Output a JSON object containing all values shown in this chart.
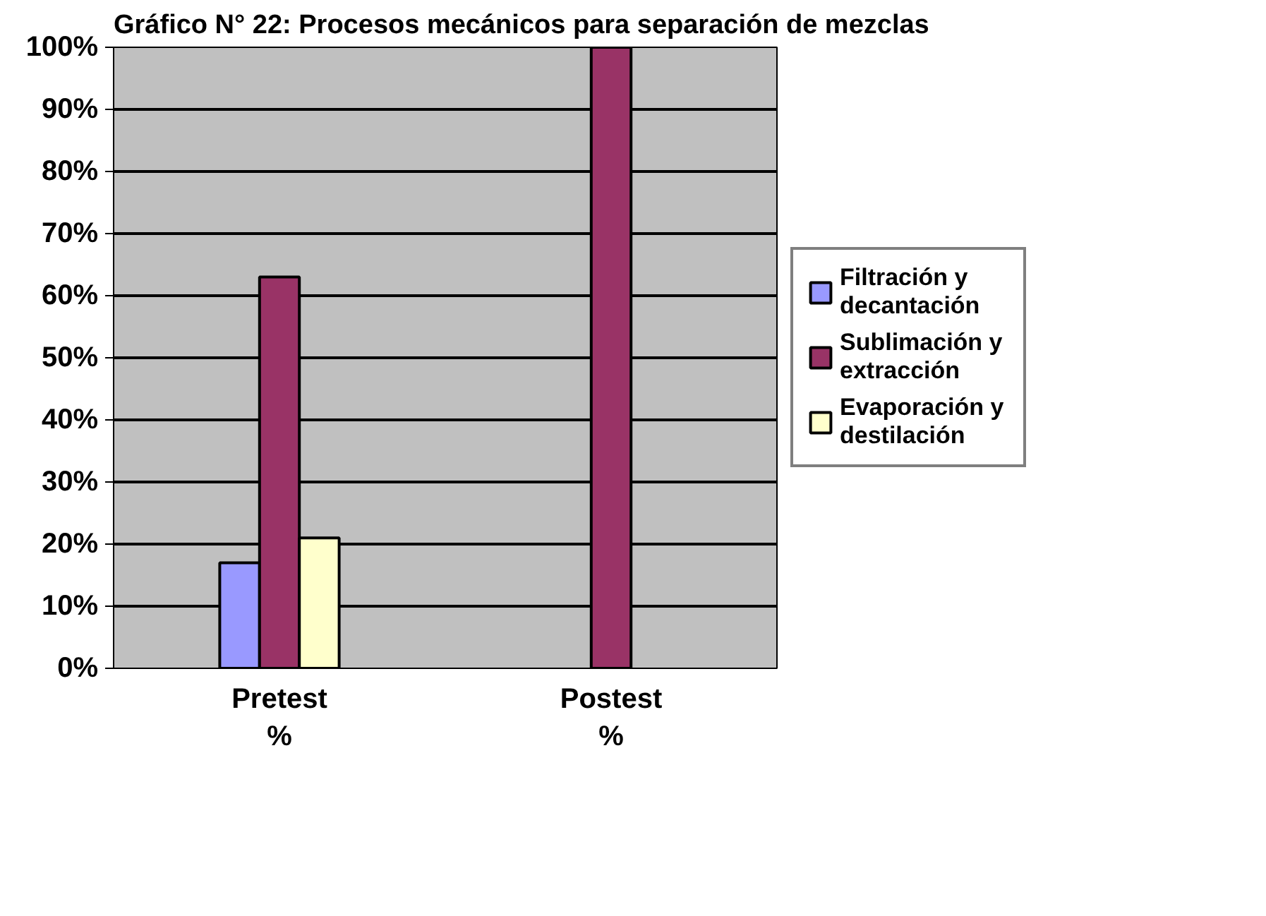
{
  "chart_data": {
    "type": "bar",
    "title": "Gráfico N° 22: Procesos mecánicos para separación de mezclas",
    "categories": [
      "Pretest %",
      "Postest %"
    ],
    "series": [
      {
        "name": "Filtración y decantación",
        "color": "#9999ff",
        "values": [
          17,
          0
        ]
      },
      {
        "name": "Sublimación y extracción",
        "color": "#993366",
        "values": [
          63,
          100
        ]
      },
      {
        "name": "Evaporación y destilación",
        "color": "#ffffcc",
        "values": [
          21,
          0
        ]
      }
    ],
    "ylim": [
      0,
      100
    ],
    "yticks": [
      {
        "value": 0,
        "label": "0%"
      },
      {
        "value": 10,
        "label": "10%"
      },
      {
        "value": 20,
        "label": "20%"
      },
      {
        "value": 30,
        "label": "30%"
      },
      {
        "value": 40,
        "label": "40%"
      },
      {
        "value": 50,
        "label": "50%"
      },
      {
        "value": 60,
        "label": "60%"
      },
      {
        "value": 70,
        "label": "70%"
      },
      {
        "value": 80,
        "label": "80%"
      },
      {
        "value": 90,
        "label": "90%"
      },
      {
        "value": 100,
        "label": "100%"
      }
    ],
    "grid": "y",
    "legend": "right"
  }
}
